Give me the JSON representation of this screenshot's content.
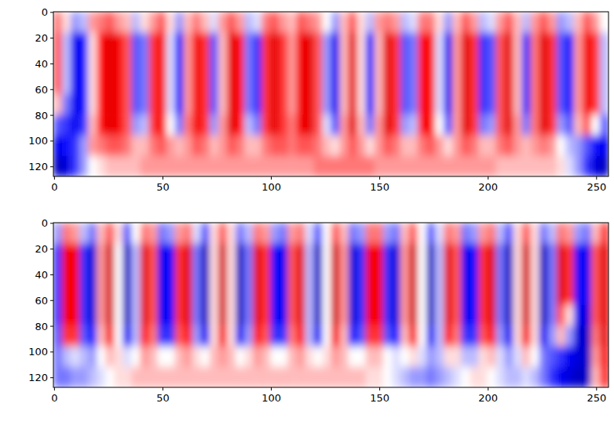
{
  "chart_data": [
    {
      "type": "heatmap",
      "color": "seismic",
      "value_range": [
        -1.5,
        1.5
      ],
      "xlim": [
        -0.5,
        255.5
      ],
      "ylim": [
        127.5,
        -0.5
      ],
      "xticks": [
        0,
        50,
        100,
        150,
        200,
        250
      ],
      "yticks": [
        0,
        20,
        40,
        60,
        80,
        100,
        120
      ],
      "tick_labels": true,
      "cells": [
        [
          0.4,
          0.1,
          -0.3,
          -0.2,
          0.3,
          0.4,
          0.5,
          0.3,
          0.2,
          -0.2,
          0.1,
          0.3,
          0.5,
          0.1,
          -0.3,
          0.2,
          0.4,
          0.2,
          -0.1,
          0.3,
          0.5,
          0.3,
          -0.2,
          -0.1,
          0.4,
          0.5,
          0.3,
          0.2,
          0.5,
          0.4,
          0.3,
          0.0,
          -0.3,
          0.2,
          0.5,
          0.1,
          -0.2,
          0.3,
          0.4,
          0.3,
          -0.2,
          -0.1,
          0.4,
          0.4,
          0.1,
          -0.3,
          0.2,
          0.5,
          0.3,
          -0.2,
          -0.1,
          0.3,
          0.5,
          0.2,
          -0.2,
          0.3,
          0.5,
          0.3,
          -0.3,
          -0.2,
          0.2,
          0.5,
          0.3,
          0.0
        ],
        [
          0.5,
          -0.2,
          -0.8,
          -0.7,
          0.1,
          0.7,
          0.9,
          0.8,
          0.5,
          -0.5,
          -0.4,
          0.6,
          0.8,
          -0.1,
          -0.7,
          0.3,
          0.8,
          0.6,
          -0.5,
          0.2,
          0.9,
          0.7,
          -0.4,
          -0.6,
          0.6,
          0.9,
          0.6,
          0.3,
          0.8,
          0.9,
          0.5,
          -0.3,
          -0.8,
          0.2,
          0.9,
          0.1,
          -0.7,
          0.2,
          0.9,
          0.6,
          -0.5,
          -0.4,
          0.7,
          0.8,
          -0.1,
          -0.8,
          0.3,
          0.9,
          0.6,
          -0.6,
          -0.5,
          0.5,
          0.9,
          0.2,
          -0.6,
          0.4,
          0.9,
          0.6,
          -0.5,
          -0.7,
          0.3,
          0.8,
          0.6,
          -0.2
        ],
        [
          0.5,
          -0.2,
          -0.8,
          -0.7,
          0.1,
          0.7,
          0.9,
          0.8,
          0.5,
          -0.5,
          -0.4,
          0.6,
          0.8,
          -0.1,
          -0.7,
          0.3,
          0.8,
          0.6,
          -0.5,
          0.2,
          0.9,
          0.7,
          -0.4,
          -0.6,
          0.6,
          0.9,
          0.6,
          0.3,
          0.8,
          0.9,
          0.5,
          -0.3,
          -0.8,
          0.2,
          0.9,
          0.1,
          -0.7,
          0.2,
          0.9,
          0.6,
          -0.5,
          -0.4,
          0.7,
          0.8,
          -0.1,
          -0.8,
          0.3,
          0.9,
          0.6,
          -0.6,
          -0.5,
          0.5,
          0.9,
          0.2,
          -0.6,
          0.4,
          0.9,
          0.6,
          -0.5,
          -0.7,
          0.3,
          0.8,
          0.6,
          -0.2
        ],
        [
          0.5,
          -0.2,
          -0.8,
          -0.7,
          0.1,
          0.7,
          0.9,
          0.8,
          0.5,
          -0.5,
          -0.4,
          0.6,
          0.8,
          -0.1,
          -0.7,
          0.3,
          0.8,
          0.6,
          -0.5,
          0.2,
          0.9,
          0.7,
          -0.4,
          -0.6,
          0.6,
          0.9,
          0.6,
          0.3,
          0.8,
          0.9,
          0.5,
          -0.3,
          -0.8,
          0.2,
          0.9,
          0.1,
          -0.7,
          0.2,
          0.9,
          0.6,
          -0.5,
          -0.4,
          0.7,
          0.8,
          -0.1,
          -0.8,
          0.3,
          0.9,
          0.6,
          -0.6,
          -0.5,
          0.5,
          0.9,
          0.2,
          -0.6,
          0.4,
          0.9,
          0.6,
          -0.5,
          -0.7,
          0.3,
          0.8,
          0.6,
          -0.2
        ],
        [
          0.2,
          -0.4,
          -0.8,
          -0.7,
          0.1,
          0.7,
          0.9,
          0.8,
          0.5,
          -0.5,
          -0.4,
          0.6,
          0.8,
          -0.1,
          -0.7,
          0.3,
          0.8,
          0.6,
          -0.5,
          0.2,
          0.9,
          0.7,
          -0.4,
          -0.6,
          0.6,
          0.9,
          0.6,
          0.3,
          0.8,
          0.9,
          0.5,
          -0.3,
          -0.8,
          0.2,
          0.9,
          0.1,
          -0.7,
          0.2,
          0.9,
          0.6,
          -0.5,
          -0.4,
          0.7,
          0.8,
          -0.1,
          -0.8,
          0.3,
          0.9,
          0.6,
          -0.6,
          -0.5,
          0.5,
          0.9,
          0.2,
          -0.6,
          0.4,
          0.9,
          0.6,
          -0.5,
          -0.7,
          0.3,
          0.8,
          0.6,
          -0.2
        ],
        [
          -0.5,
          -0.6,
          -0.8,
          -0.6,
          0.2,
          0.7,
          0.9,
          0.8,
          0.5,
          -0.3,
          -0.2,
          0.6,
          0.8,
          0.0,
          -0.4,
          0.4,
          0.8,
          0.6,
          -0.3,
          0.3,
          0.9,
          0.7,
          -0.2,
          -0.4,
          0.6,
          0.9,
          0.6,
          0.4,
          0.8,
          0.9,
          0.5,
          -0.1,
          -0.5,
          0.3,
          0.9,
          0.2,
          -0.4,
          0.3,
          0.9,
          0.6,
          -0.3,
          -0.2,
          0.7,
          0.8,
          0.0,
          -0.5,
          0.3,
          0.9,
          0.6,
          -0.4,
          -0.3,
          0.5,
          0.9,
          0.3,
          -0.4,
          0.4,
          0.9,
          0.6,
          -0.3,
          -0.5,
          0.2,
          0.5,
          0.0,
          -0.5
        ],
        [
          -0.8,
          -0.7,
          -0.6,
          -0.3,
          0.3,
          0.4,
          0.5,
          0.5,
          0.4,
          0.2,
          0.2,
          0.4,
          0.5,
          0.3,
          0.2,
          0.3,
          0.5,
          0.4,
          0.2,
          0.3,
          0.5,
          0.4,
          0.2,
          0.2,
          0.4,
          0.5,
          0.5,
          0.4,
          0.5,
          0.5,
          0.4,
          0.2,
          0.1,
          0.3,
          0.5,
          0.3,
          0.1,
          0.3,
          0.5,
          0.4,
          0.2,
          0.2,
          0.4,
          0.5,
          0.3,
          0.1,
          0.3,
          0.5,
          0.4,
          0.2,
          0.2,
          0.4,
          0.5,
          0.3,
          0.2,
          0.3,
          0.4,
          0.3,
          0.0,
          -0.2,
          -0.3,
          -0.5,
          -0.7,
          -0.8
        ],
        [
          -1.0,
          -0.9,
          -0.6,
          -0.3,
          0.0,
          0.1,
          0.2,
          0.2,
          0.2,
          0.2,
          0.3,
          0.3,
          0.3,
          0.3,
          0.3,
          0.3,
          0.3,
          0.3,
          0.3,
          0.3,
          0.3,
          0.3,
          0.3,
          0.3,
          0.3,
          0.3,
          0.3,
          0.3,
          0.3,
          0.3,
          0.4,
          0.4,
          0.4,
          0.4,
          0.4,
          0.4,
          0.4,
          0.3,
          0.3,
          0.3,
          0.3,
          0.3,
          0.3,
          0.3,
          0.3,
          0.3,
          0.3,
          0.3,
          0.3,
          0.3,
          0.3,
          0.2,
          0.2,
          0.2,
          0.2,
          0.2,
          0.2,
          0.2,
          0.1,
          -0.1,
          -0.3,
          -0.6,
          -0.9,
          -1.0
        ]
      ]
    },
    {
      "type": "heatmap",
      "color": "seismic",
      "value_range": [
        -1.5,
        1.5
      ],
      "xlim": [
        -0.5,
        255.5
      ],
      "ylim": [
        127.5,
        -0.5
      ],
      "xticks": [
        0,
        50,
        100,
        150,
        200,
        250
      ],
      "yticks": [
        0,
        20,
        40,
        60,
        80,
        100,
        120
      ],
      "tick_labels": true,
      "cells": [
        [
          -0.3,
          0.4,
          0.3,
          -0.2,
          -0.4,
          0.2,
          0.5,
          0.1,
          -0.5,
          0.0,
          0.4,
          0.3,
          -0.4,
          -0.3,
          0.3,
          0.4,
          -0.1,
          -0.5,
          0.1,
          0.5,
          0.1,
          -0.4,
          -0.2,
          0.4,
          0.3,
          -0.3,
          -0.4,
          0.3,
          0.4,
          -0.1,
          -0.5,
          0.0,
          0.5,
          0.2,
          -0.4,
          -0.3,
          0.4,
          0.4,
          -0.3,
          -0.4,
          0.2,
          0.5,
          0.0,
          -0.5,
          -0.1,
          0.4,
          0.3,
          -0.4,
          -0.3,
          0.3,
          0.4,
          -0.2,
          -0.5,
          0.1,
          0.5,
          0.1,
          -0.4,
          -0.2,
          0.4,
          0.3,
          -0.3,
          -0.4,
          0.2,
          0.6
        ],
        [
          -0.6,
          0.8,
          0.8,
          -0.6,
          -0.9,
          0.3,
          1.0,
          0.0,
          -1.0,
          -0.2,
          0.9,
          0.5,
          -0.8,
          -0.7,
          0.6,
          0.9,
          -0.4,
          -1.0,
          0.1,
          1.0,
          0.1,
          -1.0,
          -0.4,
          0.9,
          0.6,
          -0.7,
          -0.8,
          0.5,
          0.9,
          -0.2,
          -1.0,
          0.0,
          1.0,
          0.3,
          -0.9,
          -0.6,
          0.8,
          0.8,
          -0.6,
          -0.9,
          0.3,
          1.0,
          0.0,
          -1.0,
          -0.2,
          0.9,
          0.5,
          -0.8,
          -0.7,
          0.6,
          0.9,
          -0.4,
          -1.0,
          0.1,
          1.0,
          0.1,
          -1.0,
          -0.4,
          0.9,
          0.6,
          -0.7,
          -0.8,
          0.5,
          0.9
        ],
        [
          -0.6,
          0.8,
          0.8,
          -0.6,
          -0.9,
          0.3,
          1.0,
          0.0,
          -1.0,
          -0.2,
          0.9,
          0.5,
          -0.8,
          -0.7,
          0.6,
          0.9,
          -0.4,
          -1.0,
          0.1,
          1.0,
          0.1,
          -1.0,
          -0.4,
          0.9,
          0.6,
          -0.7,
          -0.8,
          0.5,
          0.9,
          -0.2,
          -1.0,
          0.0,
          1.0,
          0.3,
          -0.9,
          -0.6,
          0.8,
          0.8,
          -0.6,
          -0.9,
          0.3,
          1.0,
          0.0,
          -1.0,
          -0.2,
          0.9,
          0.5,
          -0.8,
          -0.7,
          0.6,
          0.9,
          -0.4,
          -1.0,
          0.1,
          1.0,
          0.1,
          -1.0,
          -0.4,
          0.9,
          0.6,
          -0.7,
          -0.8,
          0.5,
          0.9
        ],
        [
          -0.6,
          0.8,
          0.8,
          -0.6,
          -0.9,
          0.3,
          1.0,
          0.0,
          -1.0,
          -0.2,
          0.9,
          0.5,
          -0.8,
          -0.7,
          0.6,
          0.9,
          -0.4,
          -1.0,
          0.1,
          1.0,
          0.1,
          -1.0,
          -0.4,
          0.9,
          0.6,
          -0.7,
          -0.8,
          0.5,
          0.9,
          -0.2,
          -1.0,
          0.0,
          1.0,
          0.3,
          -0.9,
          -0.6,
          0.8,
          0.8,
          -0.6,
          -0.9,
          0.3,
          1.0,
          0.0,
          -1.0,
          -0.2,
          0.9,
          0.5,
          -0.8,
          -0.7,
          0.6,
          0.9,
          -0.4,
          -1.0,
          0.1,
          1.0,
          0.1,
          -1.0,
          -0.4,
          0.9,
          0.6,
          -0.7,
          -0.8,
          0.5,
          0.9
        ],
        [
          -0.6,
          0.8,
          0.8,
          -0.6,
          -0.9,
          0.3,
          1.0,
          0.0,
          -1.0,
          -0.2,
          0.9,
          0.5,
          -0.8,
          -0.7,
          0.6,
          0.9,
          -0.4,
          -1.0,
          0.1,
          1.0,
          0.1,
          -1.0,
          -0.4,
          0.9,
          0.6,
          -0.7,
          -0.8,
          0.5,
          0.9,
          -0.2,
          -1.0,
          0.0,
          1.0,
          0.3,
          -0.9,
          -0.6,
          0.8,
          0.8,
          -0.6,
          -0.9,
          0.3,
          1.0,
          0.0,
          -1.0,
          -0.2,
          0.9,
          0.5,
          -0.8,
          -0.7,
          0.6,
          0.9,
          -0.4,
          -1.0,
          0.1,
          1.0,
          0.1,
          -1.0,
          -0.4,
          0.5,
          0.1,
          -0.8,
          -0.9,
          0.5,
          0.9
        ],
        [
          -0.5,
          0.6,
          0.6,
          -0.5,
          -0.7,
          0.2,
          0.8,
          0.0,
          -0.8,
          -0.2,
          0.7,
          0.4,
          -0.6,
          -0.6,
          0.5,
          0.7,
          -0.3,
          -0.8,
          0.1,
          0.8,
          0.1,
          -0.8,
          -0.3,
          0.7,
          0.5,
          -0.6,
          -0.6,
          0.4,
          0.7,
          -0.2,
          -0.8,
          0.0,
          0.8,
          0.2,
          -0.7,
          -0.5,
          0.6,
          0.6,
          -0.5,
          -0.7,
          0.2,
          0.8,
          0.0,
          -0.8,
          -0.2,
          0.7,
          0.4,
          -0.6,
          -0.6,
          0.5,
          0.7,
          -0.3,
          -0.8,
          0.1,
          0.8,
          0.1,
          -0.8,
          -0.3,
          0.2,
          -0.3,
          -0.9,
          -1.0,
          0.4,
          0.9
        ],
        [
          -0.4,
          -0.2,
          -0.1,
          -0.2,
          -0.3,
          0.0,
          0.2,
          0.1,
          -0.1,
          0.0,
          0.3,
          0.2,
          0.0,
          0.0,
          0.2,
          0.3,
          0.1,
          0.0,
          0.2,
          0.3,
          0.2,
          0.0,
          0.1,
          0.3,
          0.2,
          0.0,
          0.0,
          0.2,
          0.3,
          0.1,
          0.0,
          0.1,
          0.3,
          0.2,
          0.0,
          0.0,
          0.2,
          0.2,
          0.0,
          -0.1,
          0.0,
          0.1,
          -0.1,
          -0.3,
          -0.2,
          0.1,
          0.1,
          -0.2,
          -0.2,
          0.1,
          0.2,
          -0.1,
          -0.3,
          -0.1,
          0.2,
          0.0,
          -0.4,
          -0.5,
          -0.6,
          -0.8,
          -0.9,
          -1.0,
          0.3,
          0.8
        ],
        [
          -0.4,
          -0.4,
          -0.3,
          -0.3,
          -0.2,
          -0.1,
          0.0,
          0.1,
          0.1,
          0.2,
          0.2,
          0.2,
          0.2,
          0.2,
          0.2,
          0.2,
          0.2,
          0.2,
          0.2,
          0.2,
          0.2,
          0.2,
          0.2,
          0.2,
          0.2,
          0.2,
          0.2,
          0.2,
          0.2,
          0.2,
          0.2,
          0.2,
          0.2,
          0.2,
          0.2,
          0.2,
          0.1,
          0.1,
          0.0,
          -0.1,
          -0.2,
          -0.3,
          -0.3,
          -0.4,
          -0.3,
          -0.2,
          -0.1,
          0.0,
          0.1,
          0.1,
          0.0,
          -0.1,
          -0.2,
          -0.2,
          -0.1,
          -0.2,
          -0.4,
          -0.6,
          -0.8,
          -0.9,
          -1.0,
          -1.0,
          0.2,
          0.7
        ]
      ]
    }
  ]
}
